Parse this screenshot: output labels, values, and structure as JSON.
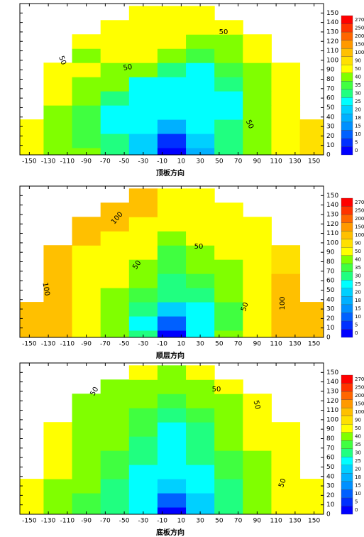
{
  "chart_data": [
    {
      "type": "contour",
      "title": "顶板方向",
      "x": [
        -150,
        -120,
        -90,
        -60,
        -30,
        0,
        30,
        60,
        90,
        120,
        150
      ],
      "y": [
        0,
        15,
        30,
        45,
        60,
        75,
        90,
        105,
        120,
        135,
        150
      ],
      "z": [
        [
          70,
          45,
          40,
          30,
          22,
          3,
          18,
          32,
          45,
          60,
          95
        ],
        [
          65,
          45,
          38,
          30,
          20,
          8,
          20,
          32,
          45,
          60,
          95
        ],
        [
          60,
          44,
          36,
          28,
          25,
          18,
          25,
          30,
          42,
          60,
          95
        ],
        [
          null,
          48,
          38,
          28,
          26,
          28,
          28,
          28,
          40,
          60,
          null
        ],
        [
          null,
          55,
          45,
          30,
          28,
          28,
          26,
          28,
          40,
          60,
          null
        ],
        [
          null,
          60,
          48,
          40,
          28,
          28,
          28,
          32,
          45,
          60,
          null
        ],
        [
          null,
          70,
          55,
          45,
          40,
          30,
          28,
          35,
          48,
          65,
          null
        ],
        [
          null,
          null,
          45,
          55,
          50,
          40,
          35,
          42,
          55,
          null,
          null
        ],
        [
          null,
          null,
          60,
          60,
          55,
          50,
          40,
          45,
          60,
          null,
          null
        ],
        [
          null,
          null,
          null,
          60,
          60,
          60,
          60,
          60,
          null,
          null,
          null
        ],
        [
          null,
          null,
          null,
          null,
          60,
          60,
          60,
          null,
          null,
          null,
          null
        ]
      ],
      "xlim": [
        -160,
        160
      ],
      "ylim": [
        0,
        160
      ],
      "xticks": [
        -150,
        -130,
        -110,
        -90,
        -70,
        -50,
        -30,
        -10,
        10,
        30,
        50,
        70,
        90,
        110,
        130,
        150
      ],
      "yticks": [
        0,
        10,
        20,
        30,
        40,
        50,
        60,
        70,
        80,
        90,
        100,
        110,
        120,
        130,
        140,
        150
      ],
      "levels": [
        0,
        5,
        10,
        15,
        18,
        20,
        25,
        30,
        35,
        40,
        50,
        90,
        100,
        150,
        200,
        250,
        270
      ],
      "colors": [
        "#0000ff",
        "#0030ff",
        "#0060ff",
        "#0090ff",
        "#00b0ff",
        "#00d0ff",
        "#00ffff",
        "#20ff80",
        "#40ff40",
        "#80ff00",
        "#ffff00",
        "#ffe000",
        "#ffc000",
        "#ff9900",
        "#ff6600",
        "#ff3300",
        "#ff0000"
      ],
      "contour_labels": [
        50,
        50,
        50,
        50
      ]
    },
    {
      "type": "contour",
      "title": "顺层方向",
      "x": [
        -150,
        -120,
        -90,
        -60,
        -30,
        0,
        30,
        60,
        90,
        120,
        150
      ],
      "y": [
        0,
        15,
        30,
        45,
        60,
        75,
        90,
        105,
        120,
        135,
        150
      ],
      "z": [
        [
          110,
          100,
          60,
          42,
          30,
          3,
          25,
          40,
          55,
          100,
          110
        ],
        [
          110,
          100,
          60,
          40,
          28,
          10,
          25,
          38,
          55,
          100,
          110
        ],
        [
          110,
          100,
          60,
          42,
          30,
          22,
          28,
          38,
          55,
          100,
          110
        ],
        [
          null,
          100,
          65,
          45,
          35,
          30,
          30,
          40,
          55,
          100,
          null
        ],
        [
          null,
          100,
          70,
          50,
          40,
          32,
          35,
          42,
          60,
          100,
          null
        ],
        [
          null,
          105,
          75,
          55,
          45,
          35,
          40,
          48,
          65,
          95,
          null
        ],
        [
          null,
          110,
          85,
          60,
          50,
          38,
          48,
          60,
          70,
          95,
          null
        ],
        [
          null,
          null,
          100,
          70,
          60,
          45,
          55,
          70,
          80,
          null,
          null
        ],
        [
          null,
          null,
          110,
          100,
          70,
          60,
          70,
          70,
          80,
          null,
          null
        ],
        [
          null,
          null,
          null,
          105,
          100,
          70,
          60,
          70,
          null,
          null,
          null
        ],
        [
          null,
          null,
          null,
          null,
          100,
          70,
          60,
          null,
          null,
          null,
          null
        ]
      ],
      "xlim": [
        -160,
        160
      ],
      "ylim": [
        0,
        160
      ],
      "xticks": [
        -150,
        -130,
        -110,
        -90,
        -70,
        -50,
        -30,
        -10,
        10,
        30,
        50,
        70,
        90,
        110,
        130,
        150
      ],
      "yticks": [
        0,
        10,
        20,
        30,
        40,
        50,
        60,
        70,
        80,
        90,
        100,
        110,
        120,
        130,
        140,
        150
      ],
      "levels": [
        0,
        5,
        10,
        15,
        18,
        20,
        25,
        30,
        35,
        40,
        50,
        90,
        100,
        150,
        200,
        250,
        270
      ],
      "colors": [
        "#0000ff",
        "#0030ff",
        "#0060ff",
        "#0090ff",
        "#00b0ff",
        "#00d0ff",
        "#00ffff",
        "#20ff80",
        "#40ff40",
        "#80ff00",
        "#ffff00",
        "#ffe000",
        "#ffc000",
        "#ff9900",
        "#ff6600",
        "#ff3300",
        "#ff0000"
      ],
      "contour_labels": [
        100,
        50,
        50,
        100,
        50,
        100
      ]
    },
    {
      "type": "contour",
      "title": "底板方向",
      "x": [
        -150,
        -120,
        -90,
        -60,
        -30,
        0,
        30,
        60,
        90,
        120,
        150
      ],
      "y": [
        0,
        15,
        30,
        45,
        60,
        75,
        90,
        105,
        120,
        135,
        150
      ],
      "z": [
        [
          60,
          45,
          38,
          30,
          25,
          3,
          22,
          30,
          40,
          50,
          60
        ],
        [
          60,
          45,
          38,
          30,
          25,
          10,
          22,
          30,
          40,
          50,
          60
        ],
        [
          60,
          48,
          40,
          32,
          28,
          22,
          26,
          32,
          42,
          52,
          60
        ],
        [
          null,
          50,
          42,
          35,
          28,
          28,
          28,
          35,
          45,
          55,
          null
        ],
        [
          null,
          55,
          45,
          38,
          30,
          28,
          30,
          38,
          48,
          60,
          null
        ],
        [
          null,
          60,
          45,
          40,
          32,
          28,
          30,
          40,
          50,
          60,
          null
        ],
        [
          null,
          60,
          45,
          40,
          35,
          28,
          32,
          40,
          50,
          60,
          null
        ],
        [
          null,
          null,
          45,
          40,
          38,
          30,
          35,
          42,
          55,
          null,
          null
        ],
        [
          null,
          null,
          48,
          42,
          40,
          35,
          40,
          45,
          55,
          null,
          null
        ],
        [
          null,
          null,
          null,
          48,
          45,
          40,
          45,
          55,
          null,
          null,
          null
        ],
        [
          null,
          null,
          null,
          null,
          55,
          48,
          55,
          null,
          null,
          null,
          null
        ]
      ],
      "xlim": [
        -160,
        160
      ],
      "ylim": [
        0,
        160
      ],
      "xticks": [
        -150,
        -130,
        -110,
        -90,
        -70,
        -50,
        -30,
        -10,
        10,
        30,
        50,
        70,
        90,
        110,
        130,
        150
      ],
      "yticks": [
        0,
        10,
        20,
        30,
        40,
        50,
        60,
        70,
        80,
        90,
        100,
        110,
        120,
        130,
        140,
        150
      ],
      "levels": [
        0,
        5,
        10,
        15,
        18,
        20,
        25,
        30,
        35,
        40,
        50,
        90,
        100,
        150,
        200,
        250,
        270
      ],
      "colors": [
        "#0000ff",
        "#0030ff",
        "#0060ff",
        "#0090ff",
        "#00b0ff",
        "#00d0ff",
        "#00ffff",
        "#20ff80",
        "#40ff40",
        "#80ff00",
        "#ffff00",
        "#ffe000",
        "#ffc000",
        "#ff9900",
        "#ff6600",
        "#ff3300",
        "#ff0000"
      ],
      "contour_labels": [
        50,
        50,
        50,
        50
      ]
    }
  ]
}
